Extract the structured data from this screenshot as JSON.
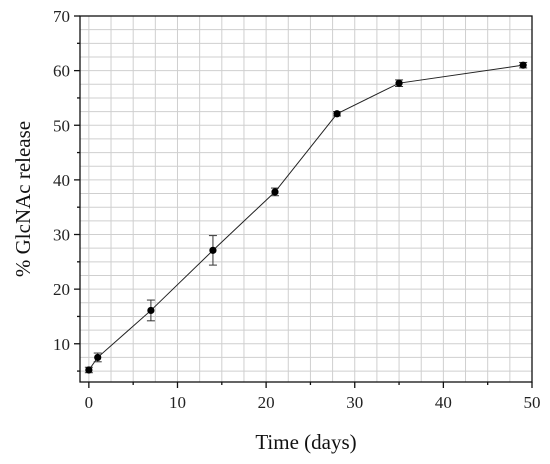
{
  "chart_data": {
    "type": "line",
    "title": "",
    "xlabel": "Time (days)",
    "ylabel": "% GlcNAc release",
    "xlim": [
      -1,
      50
    ],
    "ylim": [
      3,
      70
    ],
    "x_ticks": [
      0,
      10,
      20,
      30,
      40,
      50
    ],
    "y_ticks": [
      10,
      20,
      30,
      40,
      50,
      60,
      70
    ],
    "grid": true,
    "series": [
      {
        "marker_color": "#000000",
        "line_color": "#222222",
        "points": [
          {
            "x": 0,
            "y": 5.2,
            "err": 0.5
          },
          {
            "x": 1,
            "y": 7.5,
            "err": 0.8
          },
          {
            "x": 7,
            "y": 16.1,
            "err": 1.9
          },
          {
            "x": 14,
            "y": 27.1,
            "err": 2.7
          },
          {
            "x": 21,
            "y": 37.8,
            "err": 0.7
          },
          {
            "x": 28,
            "y": 52.1,
            "err": 0.4
          },
          {
            "x": 35,
            "y": 57.7,
            "err": 0.6
          },
          {
            "x": 49,
            "y": 61.0,
            "err": 0.5
          }
        ]
      }
    ]
  }
}
